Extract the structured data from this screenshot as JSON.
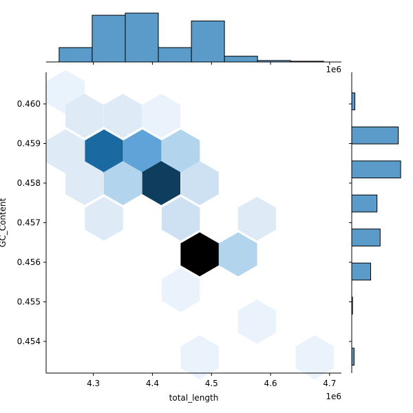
{
  "chart_data": {
    "type": "heatmap",
    "subtype": "hexbin-jointplot",
    "xlabel": "total_length",
    "ylabel": "GC_Content",
    "x_offset_label": "1e6",
    "x_unit_scale": 1000000,
    "xlim": [
      4.22,
      4.72
    ],
    "ylim": [
      0.4532,
      0.4608
    ],
    "x_ticks": [
      4.3,
      4.4,
      4.5,
      4.6,
      4.7
    ],
    "x_tick_labels": [
      "4.3",
      "4.4",
      "4.5",
      "4.6",
      "4.7"
    ],
    "y_ticks": [
      0.454,
      0.455,
      0.456,
      0.457,
      0.458,
      0.459,
      0.46
    ],
    "y_tick_labels": [
      "0.454",
      "0.455",
      "0.456",
      "0.457",
      "0.458",
      "0.459",
      "0.460"
    ],
    "grid": false,
    "color": "#5a9bc9",
    "hexbin_cells": [
      {
        "x": 4.253,
        "y": 0.4603,
        "count": 1
      },
      {
        "x": 4.285,
        "y": 0.4597,
        "count": 2
      },
      {
        "x": 4.35,
        "y": 0.4597,
        "count": 2
      },
      {
        "x": 4.415,
        "y": 0.4597,
        "count": 1
      },
      {
        "x": 4.253,
        "y": 0.4588,
        "count": 2
      },
      {
        "x": 4.318,
        "y": 0.4588,
        "count": 8
      },
      {
        "x": 4.383,
        "y": 0.4588,
        "count": 6
      },
      {
        "x": 4.448,
        "y": 0.4588,
        "count": 4
      },
      {
        "x": 4.285,
        "y": 0.458,
        "count": 2
      },
      {
        "x": 4.35,
        "y": 0.458,
        "count": 4
      },
      {
        "x": 4.415,
        "y": 0.458,
        "count": 9
      },
      {
        "x": 4.48,
        "y": 0.458,
        "count": 3
      },
      {
        "x": 4.318,
        "y": 0.4571,
        "count": 2
      },
      {
        "x": 4.448,
        "y": 0.4571,
        "count": 3
      },
      {
        "x": 4.577,
        "y": 0.4571,
        "count": 2
      },
      {
        "x": 4.48,
        "y": 0.4562,
        "count": 10
      },
      {
        "x": 4.545,
        "y": 0.4562,
        "count": 4
      },
      {
        "x": 4.448,
        "y": 0.4553,
        "count": 1
      },
      {
        "x": 4.577,
        "y": 0.4545,
        "count": 1
      },
      {
        "x": 4.48,
        "y": 0.4536,
        "count": 1
      },
      {
        "x": 4.675,
        "y": 0.4536,
        "count": 1
      }
    ],
    "marginal_x_histogram": {
      "bin_edges": [
        4.242,
        4.298,
        4.354,
        4.41,
        4.466,
        4.522,
        4.578,
        4.634,
        4.69
      ],
      "counts": [
        2,
        6.5,
        6.8,
        2,
        5.7,
        0.8,
        0.2,
        0.1
      ]
    },
    "marginal_y_histogram": {
      "bin_edges": [
        0.4534,
        0.45383,
        0.45426,
        0.45469,
        0.45512,
        0.45555,
        0.45598,
        0.45641,
        0.45684,
        0.45727,
        0.4577,
        0.45813,
        0.45856,
        0.45899,
        0.45942,
        0.45985,
        0.46028
      ],
      "counts": [
        0.3,
        0,
        0,
        0.1,
        0,
        2.4,
        0,
        3.6,
        0,
        3.2,
        0,
        6.2,
        0,
        5.9,
        0,
        0.4
      ]
    }
  }
}
